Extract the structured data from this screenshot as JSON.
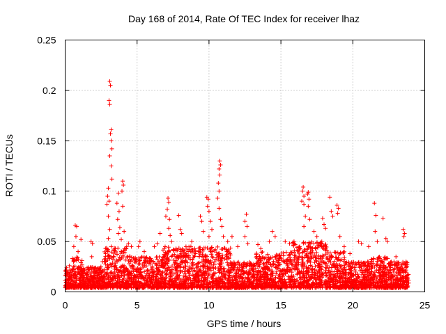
{
  "chart_data": {
    "type": "scatter",
    "title": "Day 168 of 2014, Rate Of TEC Index for receiver lhaz",
    "xlabel": "GPS time / hours",
    "ylabel": "ROTI / TECUs",
    "xlim": [
      0,
      25
    ],
    "ylim": [
      0,
      0.25
    ],
    "xticks": [
      "0",
      "5",
      "10",
      "15",
      "20",
      "25"
    ],
    "yticks": [
      "0",
      "0.05",
      "0.1",
      "0.15",
      "0.2",
      "0.25"
    ],
    "grid": true,
    "marker": "+",
    "color": "#ff0000",
    "background_ranges": [
      {
        "x": [
          0.0,
          0.5
        ],
        "y": [
          0.004,
          0.022
        ]
      },
      {
        "x": [
          0.5,
          1.2
        ],
        "y": [
          0.004,
          0.035
        ]
      },
      {
        "x": [
          1.2,
          2.7
        ],
        "y": [
          0.004,
          0.025
        ]
      },
      {
        "x": [
          2.7,
          4.5
        ],
        "y": [
          0.004,
          0.045
        ]
      },
      {
        "x": [
          4.5,
          6.8
        ],
        "y": [
          0.004,
          0.035
        ]
      },
      {
        "x": [
          6.8,
          9.0
        ],
        "y": [
          0.004,
          0.045
        ]
      },
      {
        "x": [
          9.0,
          11.5
        ],
        "y": [
          0.004,
          0.045
        ]
      },
      {
        "x": [
          11.5,
          13.2
        ],
        "y": [
          0.004,
          0.03
        ]
      },
      {
        "x": [
          13.2,
          15.8
        ],
        "y": [
          0.004,
          0.04
        ]
      },
      {
        "x": [
          15.8,
          18.2
        ],
        "y": [
          0.004,
          0.05
        ]
      },
      {
        "x": [
          18.2,
          19.5
        ],
        "y": [
          0.004,
          0.04
        ]
      },
      {
        "x": [
          19.5,
          21.0
        ],
        "y": [
          0.004,
          0.03
        ]
      },
      {
        "x": [
          21.0,
          22.5
        ],
        "y": [
          0.004,
          0.035
        ]
      },
      {
        "x": [
          22.5,
          23.9
        ],
        "y": [
          0.004,
          0.03
        ]
      }
    ],
    "spike_points": [
      {
        "x": 0.1,
        "y": 0.024
      },
      {
        "x": 0.3,
        "y": 0.026
      },
      {
        "x": 0.7,
        "y": 0.066
      },
      {
        "x": 0.8,
        "y": 0.065
      },
      {
        "x": 0.75,
        "y": 0.055
      },
      {
        "x": 0.6,
        "y": 0.045
      },
      {
        "x": 0.9,
        "y": 0.04
      },
      {
        "x": 1.1,
        "y": 0.052
      },
      {
        "x": 1.8,
        "y": 0.05
      },
      {
        "x": 1.9,
        "y": 0.048
      },
      {
        "x": 1.85,
        "y": 0.035
      },
      {
        "x": 2.6,
        "y": 0.03
      },
      {
        "x": 2.8,
        "y": 0.033
      },
      {
        "x": 3.1,
        "y": 0.209
      },
      {
        "x": 3.15,
        "y": 0.205
      },
      {
        "x": 3.05,
        "y": 0.19
      },
      {
        "x": 3.1,
        "y": 0.186
      },
      {
        "x": 3.2,
        "y": 0.161
      },
      {
        "x": 3.15,
        "y": 0.157
      },
      {
        "x": 3.2,
        "y": 0.15
      },
      {
        "x": 3.25,
        "y": 0.142
      },
      {
        "x": 3.1,
        "y": 0.135
      },
      {
        "x": 3.2,
        "y": 0.125
      },
      {
        "x": 3.25,
        "y": 0.112
      },
      {
        "x": 3.0,
        "y": 0.103
      },
      {
        "x": 2.95,
        "y": 0.095
      },
      {
        "x": 3.05,
        "y": 0.09
      },
      {
        "x": 2.9,
        "y": 0.087
      },
      {
        "x": 3.0,
        "y": 0.075
      },
      {
        "x": 3.1,
        "y": 0.062
      },
      {
        "x": 3.0,
        "y": 0.053
      },
      {
        "x": 3.2,
        "y": 0.045
      },
      {
        "x": 3.7,
        "y": 0.098
      },
      {
        "x": 3.6,
        "y": 0.088
      },
      {
        "x": 3.75,
        "y": 0.08
      },
      {
        "x": 3.65,
        "y": 0.072
      },
      {
        "x": 3.8,
        "y": 0.064
      },
      {
        "x": 3.7,
        "y": 0.058
      },
      {
        "x": 3.9,
        "y": 0.052
      },
      {
        "x": 4.0,
        "y": 0.11
      },
      {
        "x": 4.05,
        "y": 0.106
      },
      {
        "x": 3.95,
        "y": 0.1
      },
      {
        "x": 4.0,
        "y": 0.085
      },
      {
        "x": 4.1,
        "y": 0.06
      },
      {
        "x": 4.4,
        "y": 0.048
      },
      {
        "x": 4.6,
        "y": 0.045
      },
      {
        "x": 5.1,
        "y": 0.045
      },
      {
        "x": 5.2,
        "y": 0.05
      },
      {
        "x": 5.5,
        "y": 0.04
      },
      {
        "x": 6.2,
        "y": 0.045
      },
      {
        "x": 6.4,
        "y": 0.048
      },
      {
        "x": 6.6,
        "y": 0.058
      },
      {
        "x": 7.0,
        "y": 0.075
      },
      {
        "x": 7.15,
        "y": 0.093
      },
      {
        "x": 7.2,
        "y": 0.089
      },
      {
        "x": 7.1,
        "y": 0.082
      },
      {
        "x": 7.25,
        "y": 0.072
      },
      {
        "x": 7.2,
        "y": 0.063
      },
      {
        "x": 7.3,
        "y": 0.056
      },
      {
        "x": 7.4,
        "y": 0.05
      },
      {
        "x": 7.9,
        "y": 0.076
      },
      {
        "x": 8.0,
        "y": 0.062
      },
      {
        "x": 8.1,
        "y": 0.058
      },
      {
        "x": 8.4,
        "y": 0.045
      },
      {
        "x": 8.8,
        "y": 0.05
      },
      {
        "x": 9.4,
        "y": 0.075
      },
      {
        "x": 9.5,
        "y": 0.07
      },
      {
        "x": 9.6,
        "y": 0.06
      },
      {
        "x": 9.85,
        "y": 0.094
      },
      {
        "x": 9.95,
        "y": 0.092
      },
      {
        "x": 9.9,
        "y": 0.085
      },
      {
        "x": 10.0,
        "y": 0.08
      },
      {
        "x": 10.1,
        "y": 0.07
      },
      {
        "x": 10.2,
        "y": 0.062
      },
      {
        "x": 10.0,
        "y": 0.055
      },
      {
        "x": 10.75,
        "y": 0.13
      },
      {
        "x": 10.8,
        "y": 0.126
      },
      {
        "x": 10.7,
        "y": 0.122
      },
      {
        "x": 10.75,
        "y": 0.116
      },
      {
        "x": 10.65,
        "y": 0.108
      },
      {
        "x": 10.7,
        "y": 0.1
      },
      {
        "x": 10.6,
        "y": 0.093
      },
      {
        "x": 10.7,
        "y": 0.083
      },
      {
        "x": 10.8,
        "y": 0.072
      },
      {
        "x": 10.9,
        "y": 0.065
      },
      {
        "x": 11.0,
        "y": 0.055
      },
      {
        "x": 11.3,
        "y": 0.05
      },
      {
        "x": 11.6,
        "y": 0.055
      },
      {
        "x": 12.0,
        "y": 0.045
      },
      {
        "x": 12.6,
        "y": 0.077
      },
      {
        "x": 12.5,
        "y": 0.07
      },
      {
        "x": 12.65,
        "y": 0.065
      },
      {
        "x": 12.5,
        "y": 0.055
      },
      {
        "x": 12.7,
        "y": 0.048
      },
      {
        "x": 13.4,
        "y": 0.047
      },
      {
        "x": 13.6,
        "y": 0.043
      },
      {
        "x": 14.4,
        "y": 0.06
      },
      {
        "x": 14.6,
        "y": 0.055
      },
      {
        "x": 14.2,
        "y": 0.05
      },
      {
        "x": 15.3,
        "y": 0.05
      },
      {
        "x": 15.6,
        "y": 0.048
      },
      {
        "x": 16.0,
        "y": 0.047
      },
      {
        "x": 16.3,
        "y": 0.045
      },
      {
        "x": 16.55,
        "y": 0.104
      },
      {
        "x": 16.5,
        "y": 0.1
      },
      {
        "x": 16.6,
        "y": 0.095
      },
      {
        "x": 16.45,
        "y": 0.09
      },
      {
        "x": 16.6,
        "y": 0.087
      },
      {
        "x": 16.7,
        "y": 0.075
      },
      {
        "x": 16.6,
        "y": 0.065
      },
      {
        "x": 16.9,
        "y": 0.099
      },
      {
        "x": 16.85,
        "y": 0.097
      },
      {
        "x": 16.95,
        "y": 0.092
      },
      {
        "x": 16.9,
        "y": 0.085
      },
      {
        "x": 17.0,
        "y": 0.072
      },
      {
        "x": 17.3,
        "y": 0.06
      },
      {
        "x": 17.5,
        "y": 0.055
      },
      {
        "x": 17.9,
        "y": 0.073
      },
      {
        "x": 18.0,
        "y": 0.067
      },
      {
        "x": 18.1,
        "y": 0.063
      },
      {
        "x": 18.4,
        "y": 0.094
      },
      {
        "x": 18.5,
        "y": 0.08
      },
      {
        "x": 18.6,
        "y": 0.075
      },
      {
        "x": 18.9,
        "y": 0.086
      },
      {
        "x": 19.0,
        "y": 0.083
      },
      {
        "x": 18.95,
        "y": 0.078
      },
      {
        "x": 19.1,
        "y": 0.055
      },
      {
        "x": 19.4,
        "y": 0.045
      },
      {
        "x": 19.8,
        "y": 0.038
      },
      {
        "x": 20.4,
        "y": 0.05
      },
      {
        "x": 20.6,
        "y": 0.048
      },
      {
        "x": 21.1,
        "y": 0.045
      },
      {
        "x": 21.5,
        "y": 0.088
      },
      {
        "x": 21.6,
        "y": 0.076
      },
      {
        "x": 21.55,
        "y": 0.06
      },
      {
        "x": 21.7,
        "y": 0.05
      },
      {
        "x": 22.1,
        "y": 0.073
      },
      {
        "x": 22.3,
        "y": 0.053
      },
      {
        "x": 22.4,
        "y": 0.05
      },
      {
        "x": 23.0,
        "y": 0.035
      },
      {
        "x": 23.5,
        "y": 0.062
      },
      {
        "x": 23.6,
        "y": 0.058
      },
      {
        "x": 23.55,
        "y": 0.055
      },
      {
        "x": 23.7,
        "y": 0.03
      }
    ]
  }
}
